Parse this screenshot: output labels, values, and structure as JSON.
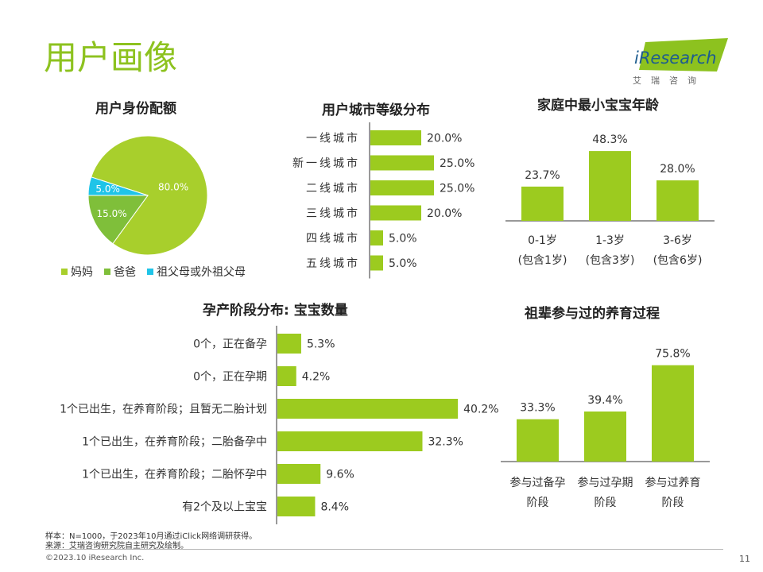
{
  "page": {
    "title": "用户画像",
    "logo_text": "iResearch",
    "logo_tagline": "艾瑞咨询",
    "footnote_sample": "样本：N=1000，于2023年10月通过iClick网络调研获得。",
    "footnote_source": "来源：艾瑞咨询研究院自主研究及绘制。",
    "copyright": "©2023.10 iResearch Inc.",
    "page_number": "11",
    "colors": {
      "accent": "#8dc21f",
      "bar": "#9ccb1f",
      "pie_light": "#a8cf2c",
      "pie_mid": "#7fbf3a",
      "pie_cyan": "#1fc4e8"
    }
  },
  "chart_data": [
    {
      "id": "identity",
      "type": "pie",
      "title": "用户身份配额",
      "categories": [
        "妈妈",
        "爸爸",
        "祖父母或外祖父母"
      ],
      "values": [
        80.0,
        15.0,
        5.0
      ],
      "labels": [
        "80.0%",
        "15.0%",
        "5.0%"
      ],
      "colors": [
        "#a8cf2c",
        "#7fbf3a",
        "#1fc4e8"
      ],
      "legend": "bottom"
    },
    {
      "id": "city",
      "type": "bar",
      "orientation": "horizontal",
      "title": "用户城市等级分布",
      "categories": [
        "一线城市",
        "新一线城市",
        "二线城市",
        "三线城市",
        "四线城市",
        "五线城市"
      ],
      "values": [
        20.0,
        25.0,
        25.0,
        20.0,
        5.0,
        5.0
      ],
      "labels": [
        "20.0%",
        "25.0%",
        "25.0%",
        "20.0%",
        "5.0%",
        "5.0%"
      ]
    },
    {
      "id": "baby_age",
      "type": "bar",
      "orientation": "vertical",
      "title": "家庭中最小宝宝年龄",
      "categories": [
        [
          "0-1岁",
          "(包含1岁)"
        ],
        [
          "1-3岁",
          "(包含3岁)"
        ],
        [
          "3-6岁",
          "(包含6岁)"
        ]
      ],
      "values": [
        23.7,
        48.3,
        28.0
      ],
      "labels": [
        "23.7%",
        "48.3%",
        "28.0%"
      ]
    },
    {
      "id": "pregnancy",
      "type": "bar",
      "orientation": "horizontal",
      "title": "孕产阶段分布: 宝宝数量",
      "categories": [
        "0个，正在备孕",
        "0个，正在孕期",
        "1个已出生，在养育阶段；且暂无二胎计划",
        "1个已出生，在养育阶段；二胎备孕中",
        "1个已出生，在养育阶段；二胎怀孕中",
        "有2个及以上宝宝"
      ],
      "values": [
        5.3,
        4.2,
        40.2,
        32.3,
        9.6,
        8.4
      ],
      "labels": [
        "5.3%",
        "4.2%",
        "40.2%",
        "32.3%",
        "9.6%",
        "8.4%"
      ]
    },
    {
      "id": "grandparents",
      "type": "bar",
      "orientation": "vertical",
      "title": "祖辈参与过的养育过程",
      "categories": [
        [
          "参与过备孕",
          "阶段"
        ],
        [
          "参与过孕期",
          "阶段"
        ],
        [
          "参与过养育",
          "阶段"
        ]
      ],
      "values": [
        33.3,
        39.4,
        75.8
      ],
      "labels": [
        "33.3%",
        "39.4%",
        "75.8%"
      ]
    }
  ]
}
